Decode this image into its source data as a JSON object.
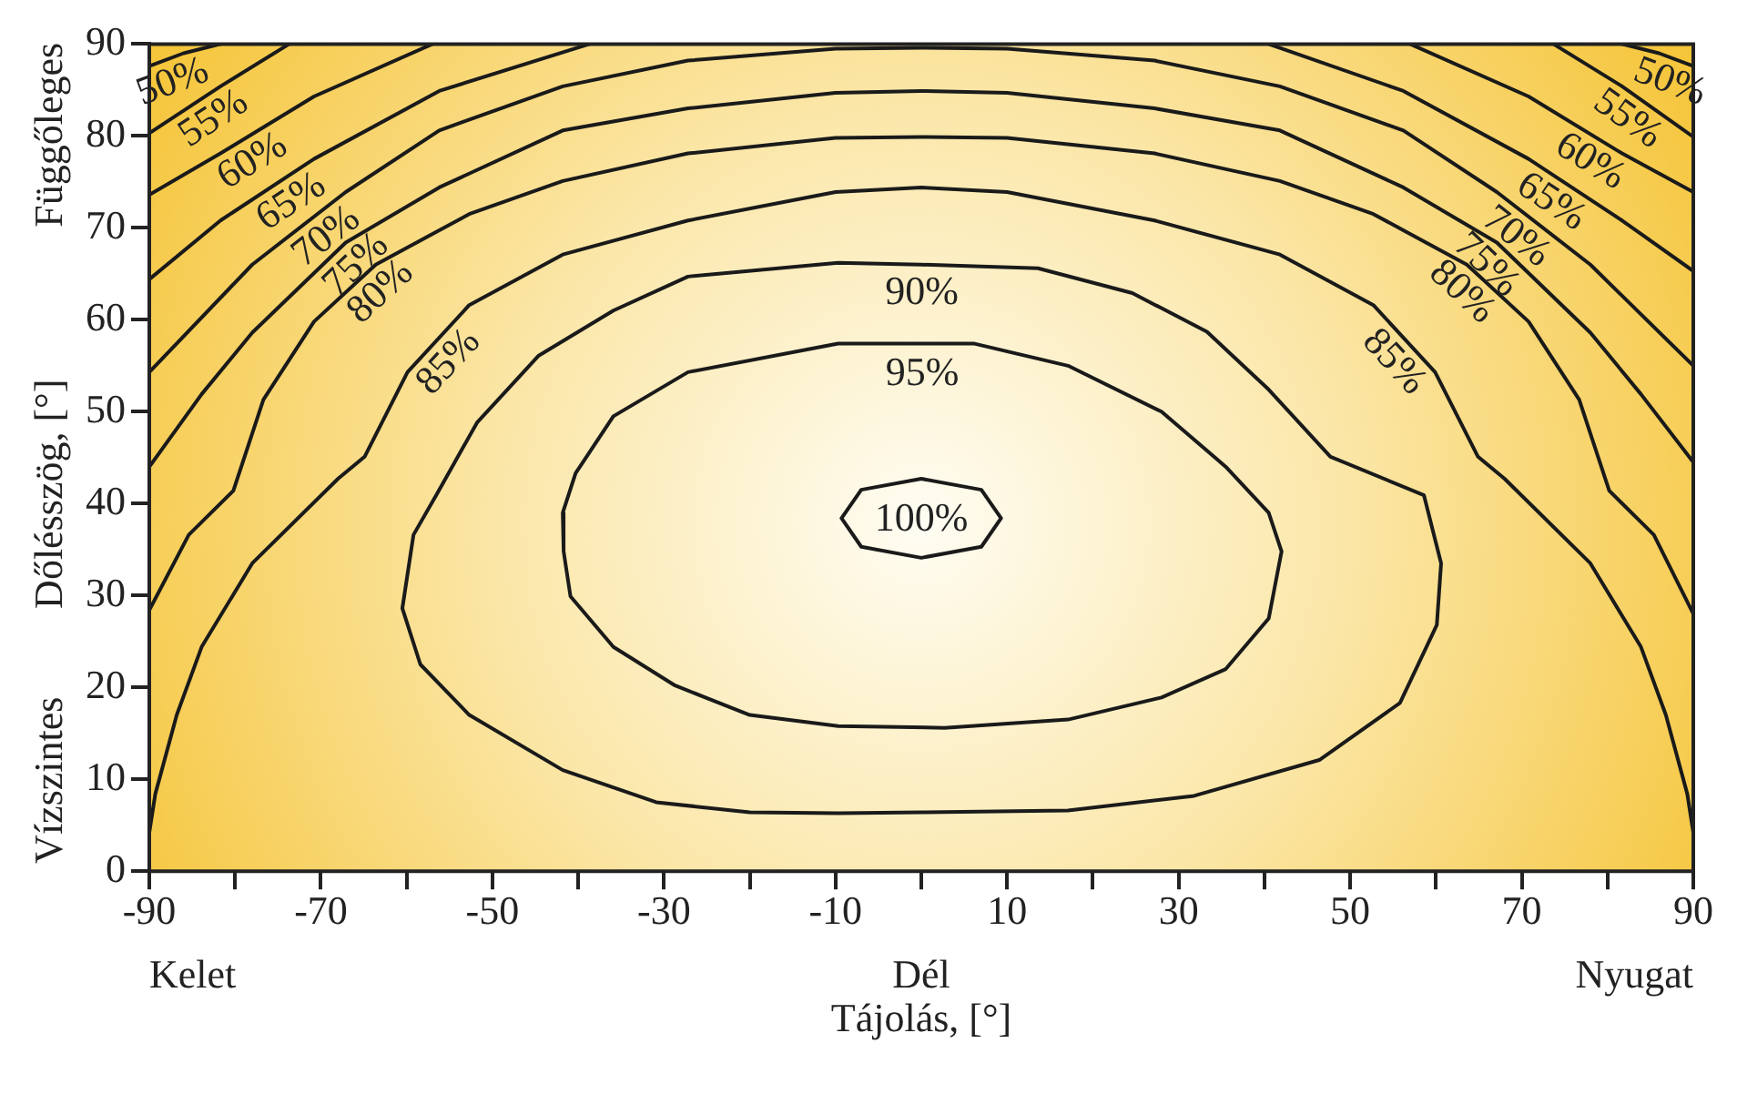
{
  "chart_data": {
    "type": "line",
    "xlabel": "Tájolás, [°]",
    "ylabel": "Dőlésszög, [°]",
    "annotations": [
      "Kelet",
      "Dél",
      "Nyugat",
      "Függőleges",
      "Vízszintes"
    ],
    "xlim": [
      -90,
      90
    ],
    "ylim": [
      0,
      90
    ],
    "xticks": [
      -90,
      {
        "value": -80,
        "label": null
      },
      -70,
      {
        "value": -60,
        "label": null
      },
      -50,
      {
        "value": -40,
        "label": null
      },
      -30,
      {
        "value": -20,
        "label": null
      },
      -10,
      {
        "value": 0,
        "label": null
      },
      10,
      {
        "value": 20,
        "label": null
      },
      30,
      {
        "value": 40,
        "label": null
      },
      50,
      {
        "value": 60,
        "label": null
      },
      70,
      {
        "value": 80,
        "label": null
      },
      90
    ],
    "yticks": [
      0,
      10,
      20,
      30,
      40,
      50,
      60,
      70,
      80,
      90
    ],
    "grid": false,
    "legend": false,
    "marker": "none",
    "line_style": "solid",
    "series": [
      {
        "name": "50%",
        "color": "#1a1a1a",
        "x": [
          -90,
          -86,
          -81.7,
          0,
          81.7,
          86,
          90
        ],
        "values": [
          87.6,
          89,
          90,
          null,
          90,
          89,
          87.6
        ]
      },
      {
        "name": "55%",
        "color": "#1a1a1a",
        "x": [
          -90,
          -81.7,
          -73.7,
          0,
          73.7,
          81.7,
          90
        ],
        "values": [
          80.3,
          85.4,
          90,
          null,
          90,
          85.4,
          79.9
        ]
      },
      {
        "name": "60%",
        "color": "#1a1a1a",
        "x": [
          -90,
          -81.7,
          -70.8,
          -57,
          0,
          57,
          70.8,
          81.7,
          90
        ],
        "values": [
          73.6,
          78.1,
          84.3,
          90,
          null,
          90,
          84.3,
          78.1,
          73.9
        ]
      },
      {
        "name": "65%",
        "color": "#1a1a1a",
        "x": [
          -90,
          -81.7,
          -70.8,
          -56.2,
          -38.7,
          0,
          40.5,
          56.2,
          70.8,
          81.7,
          90
        ],
        "values": [
          64.4,
          70.8,
          77.5,
          84.9,
          90,
          null,
          90,
          84.9,
          77.5,
          70.8,
          65.3
        ]
      },
      {
        "name": "70%",
        "color": "#1a1a1a",
        "x": [
          -90,
          -78,
          -67.1,
          -56.2,
          -41.8,
          -27.2,
          -10,
          0,
          10,
          27.2,
          41.8,
          56.2,
          67.1,
          78,
          90
        ],
        "values": [
          54.3,
          66,
          73.9,
          80.6,
          85.4,
          88.2,
          89.5,
          89.6,
          89.5,
          88.2,
          85.4,
          80.6,
          73.9,
          66,
          55
        ]
      },
      {
        "name": "75%",
        "color": "#1a1a1a",
        "x": [
          -90,
          -83.9,
          -78,
          -67.1,
          -56.2,
          -41.8,
          -27.2,
          -10,
          0,
          10,
          27.2,
          41.8,
          56.2,
          67.1,
          78,
          83.9,
          90
        ],
        "values": [
          44,
          51.9,
          58.6,
          68.4,
          74.4,
          80.6,
          83,
          84.7,
          84.9,
          84.7,
          83,
          80.6,
          74.4,
          68.4,
          58.6,
          51.9,
          44.5
        ]
      },
      {
        "name": "80%",
        "color": "#1a1a1a",
        "x": [
          -90,
          -85.4,
          -80.2,
          -76.7,
          -70.8,
          -63.6,
          -52.7,
          -41.8,
          -27.2,
          -10,
          0,
          10,
          27.2,
          41.8,
          52.7,
          63.6,
          70.8,
          76.7,
          80.2,
          85.4,
          90
        ],
        "values": [
          28.4,
          36.6,
          41.4,
          51.3,
          59.8,
          66,
          71.5,
          75.1,
          78.1,
          79.8,
          79.9,
          79.8,
          78.1,
          75.1,
          71.5,
          66,
          59.8,
          51.3,
          41.4,
          36.6,
          28
        ]
      },
      {
        "name": "85%",
        "color": "#1a1a1a",
        "x": [
          -90,
          -89.3,
          -86.8,
          -83.9,
          -78,
          -68,
          -64.9,
          -59.9,
          -52.7,
          -41.8,
          -27.2,
          -10,
          0,
          10,
          27.2,
          41.8,
          52.7,
          59.9,
          64.9,
          68,
          78,
          83.9,
          86.8,
          89.3,
          90
        ],
        "values": [
          4.2,
          8.4,
          17,
          24.4,
          33.5,
          42.7,
          45.1,
          54.3,
          61.6,
          67.1,
          70.8,
          73.9,
          74.4,
          73.9,
          70.8,
          67.1,
          61.6,
          54.3,
          45.1,
          42.7,
          33.5,
          24.4,
          17,
          8.4,
          4.2
        ]
      },
      {
        "name": "90%",
        "color": "#1a1a1a",
        "x": [
          -60.5,
          -59.2,
          -56.5,
          -51.8,
          -44.6,
          -35.9,
          -27.2,
          -9.7,
          0,
          13.6,
          24.6,
          33.3,
          40.5,
          47.7,
          58.6,
          60.6,
          0,
          -60.5,
          -58.4,
          -52.7,
          -41.8,
          -30.9,
          -20,
          -9.7,
          0,
          17.1,
          31.8,
          46.4,
          55.8,
          60.1,
          60.6
        ],
        "values": [
          28.6,
          36.6,
          41,
          48.8,
          56.1,
          61,
          64.7,
          66.2,
          66,
          65.6,
          62.9,
          58.7,
          52.4,
          45.1,
          40.9,
          33.5,
          null,
          28.6,
          22.5,
          17,
          11,
          7.5,
          6.4,
          6.3,
          6.4,
          6.6,
          8.2,
          12.1,
          18.3,
          26.8,
          33.5
        ]
      },
      {
        "name": "95%",
        "color": "#1a1a1a",
        "x": [
          -41.8,
          -40.3,
          -35.9,
          -27.2,
          -9.7,
          0,
          6.2,
          17.1,
          28,
          35.5,
          40.5,
          42,
          0,
          -41.8,
          -41.7,
          -40.9,
          -35.9,
          -28.7,
          -20,
          -9.7,
          2.7,
          17.1,
          28,
          35.5,
          40.5,
          42
        ],
        "values": [
          39,
          43.3,
          49.5,
          54.3,
          57.4,
          57.4,
          57.4,
          55,
          50,
          44,
          39,
          34.8,
          null,
          39,
          34.8,
          29.9,
          24.4,
          20.2,
          17,
          15.8,
          15.6,
          16.5,
          18.9,
          22,
          27.5,
          34.8
        ]
      },
      {
        "name": "100%",
        "color": "#1a1a1a",
        "x": [
          -9.3,
          -7,
          0,
          7,
          9.3,
          0,
          -9.3,
          -7,
          0,
          7,
          9.3
        ],
        "values": [
          38.4,
          41.5,
          42.7,
          41.5,
          38.4,
          null,
          38.4,
          35.3,
          34.1,
          35.3,
          38.4
        ]
      }
    ]
  }
}
